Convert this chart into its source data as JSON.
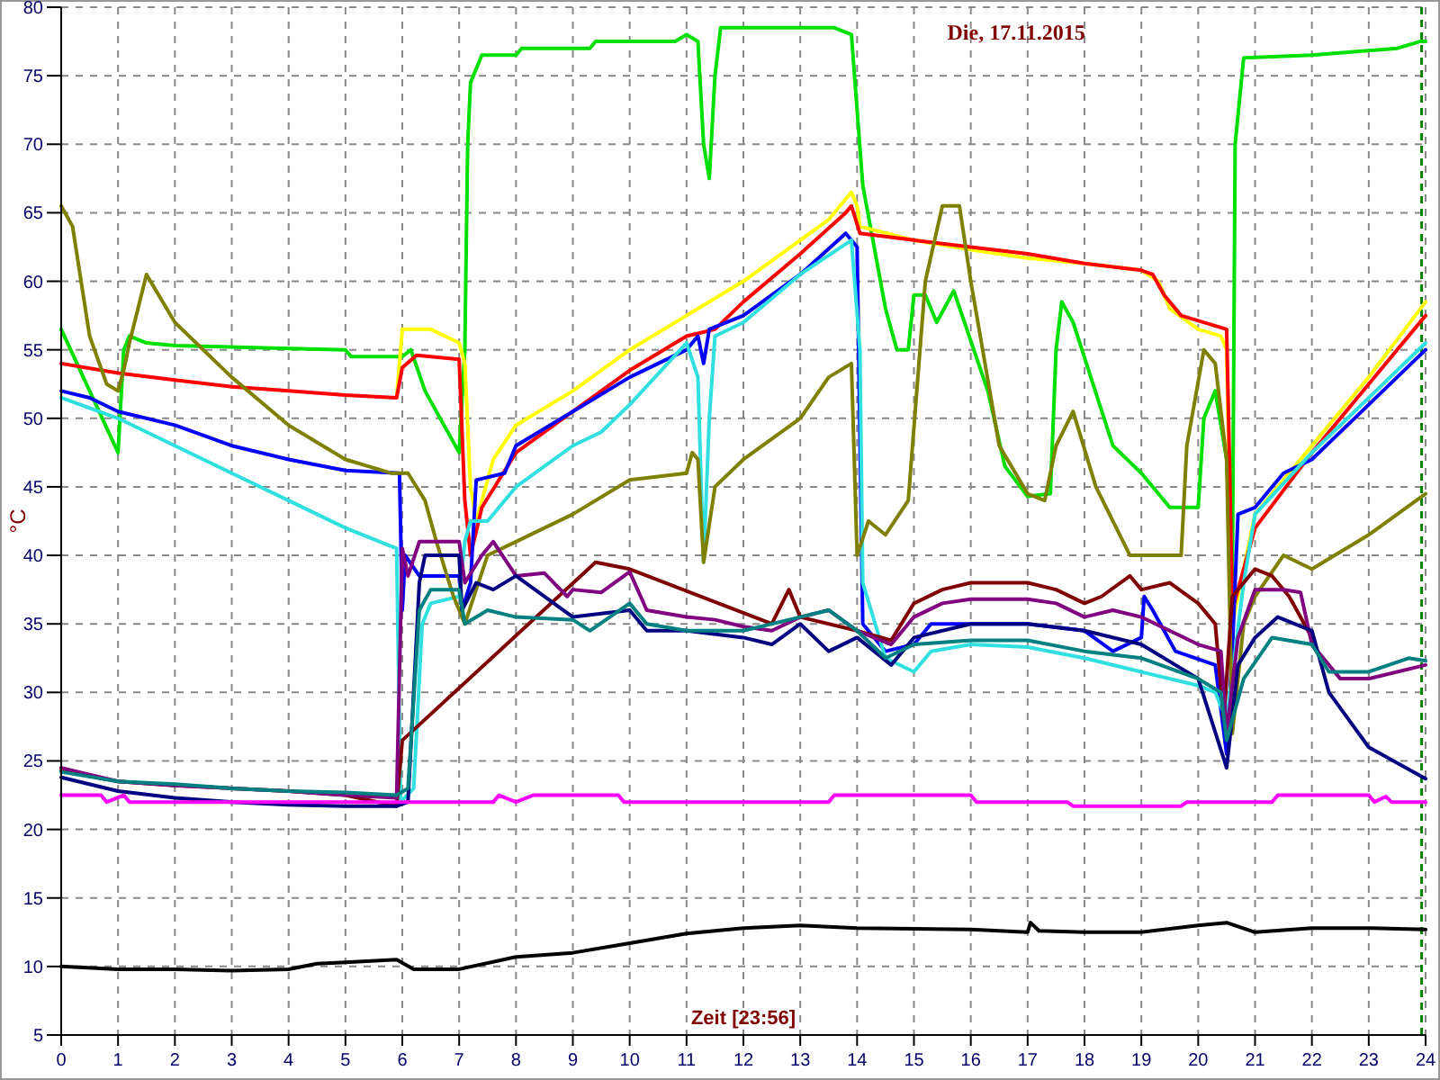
{
  "chart_data": {
    "type": "line",
    "title": "Die, 17.11.2015",
    "xlabel": "Zeit [23:56]",
    "ylabel": "°C",
    "xlim": [
      0,
      24
    ],
    "xticks": [
      0,
      1,
      2,
      3,
      4,
      5,
      6,
      7,
      8,
      9,
      10,
      11,
      12,
      13,
      14,
      15,
      16,
      17,
      18,
      19,
      20,
      21,
      22,
      23,
      24
    ],
    "ylim": [
      5,
      80
    ],
    "yticks": [
      5,
      10,
      15,
      20,
      25,
      30,
      35,
      40,
      45,
      50,
      55,
      60,
      65,
      70,
      75,
      80
    ],
    "grid": true,
    "marker": "none",
    "line_style": "solid",
    "ref_lines": [
      {
        "axis": "x",
        "value": 23.93,
        "color": "#008000",
        "line_style": "dashed"
      }
    ],
    "series": [
      {
        "color": "#00e000",
        "x": [
          0,
          0.5,
          1,
          1.1,
          1.2,
          1.5,
          2,
          5,
          5.1,
          6,
          6.15,
          6.4,
          7,
          7.1,
          7.15,
          7.2,
          7.4,
          8,
          8.1,
          9.3,
          9.4,
          10.8,
          11,
          11.2,
          11.3,
          11.4,
          11.5,
          11.6,
          13.6,
          13.9,
          14.1,
          14.5,
          14.7,
          14.9,
          15,
          15.2,
          15.4,
          15.7,
          16.3,
          16.6,
          17,
          17.4,
          17.5,
          17.6,
          17.8,
          18.5,
          19,
          19.5,
          20,
          20.1,
          20.3,
          20.5,
          20.6,
          20.65,
          20.8,
          22,
          23.5,
          23.9,
          24
        ],
        "values": [
          56.5,
          52,
          47.5,
          55,
          56,
          55.5,
          55.3,
          55,
          54.5,
          54.5,
          55,
          52,
          47.5,
          55,
          70,
          74.5,
          76.5,
          76.5,
          77,
          77,
          77.5,
          77.5,
          78,
          77.5,
          70,
          67.5,
          75,
          78.5,
          78.5,
          78,
          67,
          58,
          55,
          55,
          59,
          59,
          57,
          59.3,
          52,
          46.5,
          44.3,
          44.5,
          55,
          58.5,
          57,
          48,
          46,
          43.5,
          43.5,
          50,
          52,
          47,
          38,
          70,
          76.3,
          76.5,
          77,
          77.5,
          77.5
        ]
      },
      {
        "color": "#ffff00",
        "x": [
          5.9,
          6,
          6.5,
          7,
          7.1,
          7.2,
          7.3,
          7.6,
          8,
          9,
          10,
          11,
          12,
          13,
          13.5,
          13.9,
          14,
          14.05,
          15,
          16,
          17,
          18,
          19,
          19.3,
          19.5,
          20,
          20.4,
          20.5,
          20.6,
          20.75,
          21,
          22,
          23,
          24
        ],
        "values": [
          51.5,
          56.5,
          56.5,
          55.5,
          54,
          45,
          42.5,
          47,
          49.5,
          52,
          55,
          57.5,
          60,
          63,
          64.5,
          66.5,
          65.5,
          64,
          63,
          62.3,
          61.7,
          61.3,
          60.8,
          60,
          58,
          56.5,
          56,
          55,
          35,
          38,
          43,
          48,
          53,
          58.5
        ]
      },
      {
        "color": "#ff0000",
        "x": [
          0,
          1,
          2,
          3,
          4,
          5,
          5.9,
          6,
          6.25,
          7,
          7.1,
          7.2,
          7.4,
          8,
          9,
          10,
          11,
          11.5,
          12,
          13,
          13.8,
          13.9,
          14.05,
          15,
          16,
          17,
          18,
          19,
          19.2,
          19.4,
          19.7,
          20.5,
          20.55,
          20.6,
          21,
          22,
          23,
          24
        ],
        "values": [
          54,
          53.3,
          52.8,
          52.3,
          52,
          51.7,
          51.5,
          53.7,
          54.6,
          54.3,
          44,
          40,
          43.5,
          47.5,
          50.5,
          53.5,
          56,
          56.5,
          58.5,
          62,
          65,
          65.5,
          63.5,
          63,
          62.5,
          62,
          61.3,
          60.8,
          60.5,
          59,
          57.5,
          56.5,
          47,
          36,
          42,
          47.5,
          52.5,
          57.5
        ]
      },
      {
        "color": "#0000ff",
        "x": [
          0,
          0.5,
          1,
          2,
          3,
          4,
          5,
          5.95,
          6,
          6.05,
          6.3,
          7,
          7.05,
          7.2,
          7.3,
          7.8,
          8,
          9,
          10,
          11,
          11.2,
          11.3,
          11.4,
          12,
          13,
          13.8,
          14,
          14.1,
          14.5,
          15,
          15.3,
          16,
          17,
          18,
          18.5,
          19,
          19.05,
          19.2,
          19.6,
          20.3,
          20.5,
          20.6,
          20.7,
          21,
          21.5,
          22,
          23,
          24
        ],
        "values": [
          52,
          51.5,
          50.5,
          49.5,
          48,
          47,
          46.2,
          46,
          36,
          40,
          38.5,
          38.5,
          36,
          38,
          45.5,
          46,
          48,
          50.5,
          53,
          55,
          56,
          54,
          56.5,
          57.5,
          60.5,
          63.5,
          62.5,
          35,
          33,
          33.5,
          35,
          35,
          35,
          34.5,
          33,
          34,
          37,
          36,
          33,
          32,
          25.5,
          33,
          43,
          43.5,
          46,
          47,
          51,
          55
        ]
      },
      {
        "color": "#30e0e0",
        "x": [
          0,
          1,
          2,
          3,
          4,
          5,
          5.9,
          5.97,
          6.2,
          6.35,
          6.5,
          7,
          7.1,
          7.2,
          7.5,
          8,
          9,
          9.5,
          10,
          11,
          11.2,
          11.3,
          11.4,
          11.5,
          12,
          13,
          13.9,
          14.05,
          14.1,
          14.5,
          15,
          15.3,
          16,
          17,
          18,
          19,
          20,
          20.3,
          20.5,
          20.8,
          21,
          22,
          23,
          24
        ],
        "values": [
          51.5,
          50,
          48,
          46,
          44,
          42,
          40.5,
          22,
          23,
          35,
          36.5,
          37,
          41,
          42.5,
          42.5,
          45,
          48,
          49,
          51,
          55.5,
          53,
          39.5,
          50,
          56,
          57,
          60.5,
          63,
          55,
          38,
          32.5,
          31.5,
          33,
          33.5,
          33.3,
          32.5,
          31.5,
          30.5,
          30,
          28,
          38,
          43,
          47.5,
          51.5,
          55.5
        ]
      },
      {
        "color": "#808000",
        "x": [
          0,
          0.2,
          0.5,
          0.8,
          1,
          1.1,
          1.2,
          1.5,
          2,
          3,
          4,
          5,
          5.8,
          6.1,
          6.4,
          6.6,
          6.9,
          7.1,
          7.5,
          8,
          9,
          10,
          11,
          11.1,
          11.2,
          11.3,
          11.5,
          12,
          13,
          13.5,
          13.9,
          14,
          14.2,
          14.5,
          14.9,
          15.2,
          15.5,
          15.8,
          16,
          16.5,
          17,
          17.3,
          17.5,
          17.8,
          18.2,
          18.8,
          19.7,
          19.8,
          20.1,
          20.3,
          20.5,
          20.6,
          20.8,
          21,
          21.5,
          22,
          23,
          24
        ],
        "values": [
          65.5,
          64,
          56,
          52.5,
          52,
          53.5,
          55.5,
          60.5,
          57,
          53,
          49.5,
          47,
          46,
          46,
          44,
          41,
          37,
          35,
          40,
          41,
          43,
          45.5,
          46,
          47.5,
          47,
          39.5,
          45,
          47,
          50,
          53,
          54,
          40,
          42.5,
          41.5,
          44,
          60,
          65.5,
          65.5,
          60,
          48,
          44.5,
          44,
          48,
          50.5,
          45,
          40,
          40,
          48,
          55,
          54,
          47,
          27,
          35,
          37,
          40,
          39,
          41.5,
          44.5
        ]
      },
      {
        "color": "#800000",
        "x": [
          0,
          1,
          2,
          3,
          4,
          5,
          5.9,
          6,
          9.4,
          10,
          12.5,
          12.8,
          13,
          14,
          14.6,
          15,
          15.5,
          16,
          17,
          17.5,
          18,
          18.3,
          18.8,
          19,
          19.5,
          20,
          20.3,
          20.45,
          20.6,
          21,
          21.3,
          21.6,
          22
        ],
        "values": [
          24.3,
          23.5,
          23.2,
          23,
          22.8,
          22.5,
          21.7,
          26.5,
          39.5,
          39,
          35,
          37.5,
          35.5,
          34.5,
          33.8,
          36.5,
          37.5,
          38,
          38,
          37.5,
          36.5,
          37,
          38.5,
          37.5,
          38,
          36.5,
          35,
          28,
          37,
          39,
          38.5,
          37,
          34
        ]
      },
      {
        "color": "#800080",
        "x": [
          0,
          1,
          2,
          3,
          4,
          5,
          5.9,
          6,
          6.1,
          6.3,
          7,
          7.1,
          7.4,
          7.6,
          8,
          8.5,
          8.9,
          9,
          9.5,
          10,
          10.3,
          11,
          11.5,
          12,
          12.5,
          13,
          13.5,
          14,
          14.6,
          15,
          15.5,
          16,
          17,
          17.5,
          18,
          18.5,
          19,
          20,
          20.4,
          20.5,
          20.7,
          21,
          21.5,
          21.8,
          22,
          22.5,
          23,
          24
        ],
        "values": [
          24.5,
          23.5,
          23.2,
          23,
          22.8,
          22.5,
          22.3,
          40.5,
          38.5,
          41,
          41,
          38,
          40,
          41,
          38.5,
          38.7,
          37,
          37.5,
          37.3,
          38.8,
          36,
          35.5,
          35.3,
          34.8,
          34.5,
          35.5,
          36,
          34.5,
          33.5,
          35.5,
          36.5,
          36.8,
          36.8,
          36.5,
          35.5,
          36,
          35.5,
          33.5,
          33,
          27,
          34,
          37.5,
          37.5,
          37.3,
          33.5,
          31,
          31,
          32
        ]
      },
      {
        "color": "#000080",
        "x": [
          0,
          1,
          2,
          3,
          4,
          5,
          5.9,
          6.1,
          6.3,
          6.4,
          7,
          7.05,
          7.3,
          7.6,
          8,
          9,
          10,
          10.3,
          11,
          12,
          12.5,
          13,
          13.5,
          14,
          14.6,
          15,
          16,
          17,
          18,
          19,
          20,
          20.5,
          20.7,
          21,
          21.4,
          22,
          22.3,
          23,
          24
        ],
        "values": [
          23.8,
          22.8,
          22.3,
          22,
          21.8,
          21.7,
          21.7,
          22,
          38,
          40,
          40,
          36,
          38,
          37.5,
          38.5,
          35.5,
          36,
          34.5,
          34.5,
          34,
          33.5,
          35,
          33,
          34,
          32,
          34,
          35,
          35,
          34.5,
          33.5,
          31,
          24.5,
          32,
          34,
          35.5,
          34.5,
          30,
          26,
          23.7
        ]
      },
      {
        "color": "#008080",
        "x": [
          0,
          1,
          2,
          3,
          4,
          5,
          5.9,
          6.1,
          6.3,
          6.5,
          7,
          7.1,
          7.5,
          8,
          9,
          9.3,
          10,
          10.3,
          11,
          12,
          13,
          13.5,
          14,
          14.5,
          15,
          16,
          17,
          18,
          19,
          20,
          20.4,
          20.5,
          20.8,
          21.3,
          22,
          22.3,
          23,
          23.7,
          24
        ],
        "values": [
          24.2,
          23.5,
          23.3,
          23,
          22.8,
          22.7,
          22.5,
          23,
          36,
          37.5,
          37.5,
          35,
          36,
          35.5,
          35.3,
          34.5,
          36.5,
          35,
          34.5,
          34.5,
          35.5,
          36,
          34.5,
          32.5,
          33.5,
          33.8,
          33.8,
          33,
          32.5,
          31,
          30,
          26.5,
          31,
          34,
          33.5,
          31.5,
          31.5,
          32.5,
          32.3
        ]
      },
      {
        "color": "#ff00ff",
        "x": [
          0,
          0.7,
          0.8,
          1.1,
          1.2,
          6.2,
          7.6,
          7.7,
          8,
          8.3,
          9.8,
          9.9,
          13.5,
          13.6,
          16,
          16.1,
          17.7,
          17.8,
          19.7,
          19.8,
          21.3,
          21.4,
          23,
          23.1,
          23.3,
          23.4,
          24
        ],
        "values": [
          22.5,
          22.5,
          22,
          22.5,
          22,
          22,
          22,
          22.5,
          22,
          22.5,
          22.5,
          22,
          22,
          22.5,
          22.5,
          22,
          22,
          21.7,
          21.7,
          22,
          22,
          22.5,
          22.5,
          22,
          22.4,
          22,
          22
        ]
      },
      {
        "color": "#000000",
        "x": [
          0,
          1,
          2,
          3,
          4,
          4.5,
          5,
          5.9,
          6.2,
          7,
          8,
          9,
          10,
          11,
          12,
          13,
          14,
          16,
          17,
          17.05,
          17.2,
          18,
          19,
          20,
          20.5,
          21,
          22,
          23,
          24
        ],
        "values": [
          10,
          9.8,
          9.8,
          9.7,
          9.8,
          10.2,
          10.3,
          10.5,
          9.8,
          9.8,
          10.7,
          11,
          11.7,
          12.4,
          12.8,
          13,
          12.8,
          12.7,
          12.5,
          13.2,
          12.6,
          12.5,
          12.5,
          13,
          13.2,
          12.5,
          12.8,
          12.8,
          12.7
        ]
      }
    ]
  }
}
